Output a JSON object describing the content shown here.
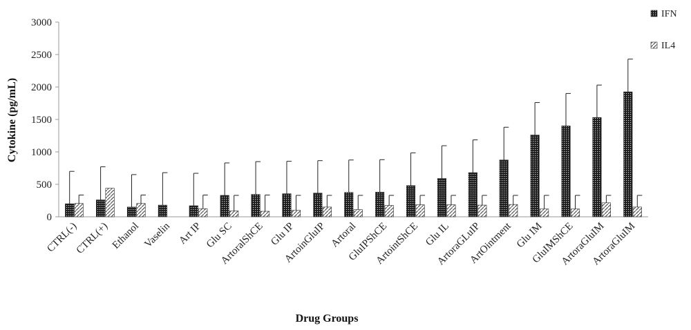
{
  "chart_data": {
    "type": "bar",
    "title": "",
    "xlabel": "Drug Groups",
    "ylabel": "Cytokine (pg/mL)",
    "ylim": [
      0,
      3000
    ],
    "yticks": [
      0,
      500,
      1000,
      1500,
      2000,
      2500,
      3000
    ],
    "grid": false,
    "legend_position": "top-right",
    "categories": [
      "CTRL(-)",
      "CTRL(+)",
      "Ethanol",
      "Vaselin",
      "Art IP",
      "Glu SC",
      "ArtoralShCE",
      "Glu IP",
      "ArtoinGluIP",
      "Artoral",
      "GluIPShCE",
      "ArtointShCE",
      "Glu IL",
      "ArtoraGLuIP",
      "ArtOintment",
      "Glu IM",
      "GluIMShCE",
      "ArtoraGluIM",
      "ArtoraGluIM"
    ],
    "series": [
      {
        "name": "IFN",
        "pattern": "dots-dark",
        "values": [
          200,
          260,
          150,
          180,
          170,
          330,
          345,
          355,
          365,
          375,
          380,
          480,
          590,
          680,
          875,
          1260,
          1400,
          1530,
          1925
        ],
        "errors": [
          500,
          510,
          500,
          500,
          500,
          500,
          505,
          500,
          500,
          500,
          500,
          505,
          505,
          505,
          505,
          500,
          500,
          500,
          505
        ]
      },
      {
        "name": "IL4",
        "pattern": "diagonal-light",
        "values": [
          205,
          440,
          205,
          0,
          125,
          90,
          85,
          100,
          150,
          110,
          175,
          185,
          185,
          180,
          190,
          120,
          120,
          215,
          150
        ],
        "errors": [
          130,
          0,
          130,
          0,
          210,
          240,
          250,
          230,
          180,
          220,
          155,
          145,
          145,
          150,
          140,
          210,
          210,
          115,
          180
        ]
      }
    ]
  }
}
